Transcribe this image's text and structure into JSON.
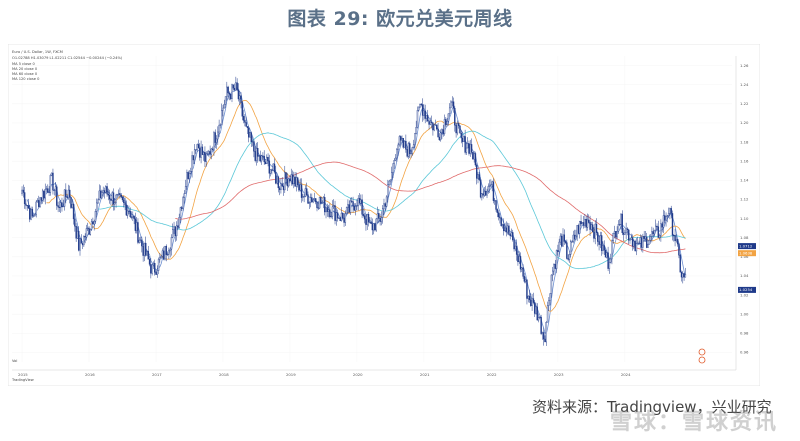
{
  "figure": {
    "title": "图表 29: 欧元兑美元周线",
    "source": "资料来源：Tradingview，兴业研究",
    "watermark": "雪球：雪球资讯"
  },
  "chart_header": {
    "symbol_line": "Euro / U.S. Dollar, 1W, FXCM",
    "ohlc_line": "O1.02788 H1.03079 L1.02211 C1.02544 −0.00244 (−0.24%)",
    "indicators": [
      "MA 5 close 0",
      "MA 20 close 0",
      "MA 60 close 0",
      "MA 120 close 0"
    ],
    "bottom_indicator": "Vol",
    "brand": "TradingView"
  },
  "colors": {
    "candle_up": "#ffffff",
    "candle_down": "#1f3a8a",
    "candle_edge": "#1f3a8a",
    "ma_5": "#6d8fd0",
    "ma_20": "#f2a343",
    "ma_60": "#5cc8d8",
    "ma_120": "#e06b6b",
    "badge_1": "#e05a2a",
    "badge_2": "#1f3a8a",
    "badge_3": "#f2a343"
  },
  "price_tags": [
    "1.0712",
    "1.0638",
    "1.0254"
  ],
  "chart_data": {
    "type": "candlestick",
    "title": "",
    "xlabel": "",
    "ylabel": "",
    "ylim": [
      0.95,
      1.27
    ],
    "x_ticks": [
      "2015",
      "2016",
      "2017",
      "2018",
      "2019",
      "2020",
      "2021",
      "2022",
      "2023",
      "2024"
    ],
    "y_ticks": [
      0.96,
      0.98,
      1.0,
      1.02,
      1.04,
      1.06,
      1.08,
      1.1,
      1.12,
      1.14,
      1.16,
      1.18,
      1.2,
      1.22,
      1.24,
      1.26
    ],
    "close_path": [
      [
        2015.0,
        1.13
      ],
      [
        2015.15,
        1.1
      ],
      [
        2015.25,
        1.12
      ],
      [
        2015.45,
        1.14
      ],
      [
        2015.55,
        1.11
      ],
      [
        2015.7,
        1.13
      ],
      [
        2015.85,
        1.07
      ],
      [
        2016.0,
        1.09
      ],
      [
        2016.2,
        1.13
      ],
      [
        2016.4,
        1.12
      ],
      [
        2016.6,
        1.11
      ],
      [
        2016.8,
        1.07
      ],
      [
        2016.95,
        1.045
      ],
      [
        2017.1,
        1.06
      ],
      [
        2017.3,
        1.09
      ],
      [
        2017.45,
        1.14
      ],
      [
        2017.6,
        1.18
      ],
      [
        2017.75,
        1.16
      ],
      [
        2017.9,
        1.19
      ],
      [
        2018.05,
        1.23
      ],
      [
        2018.2,
        1.235
      ],
      [
        2018.35,
        1.19
      ],
      [
        2018.5,
        1.165
      ],
      [
        2018.7,
        1.155
      ],
      [
        2018.85,
        1.135
      ],
      [
        2019.0,
        1.145
      ],
      [
        2019.2,
        1.125
      ],
      [
        2019.4,
        1.12
      ],
      [
        2019.6,
        1.11
      ],
      [
        2019.8,
        1.1
      ],
      [
        2020.0,
        1.12
      ],
      [
        2020.2,
        1.09
      ],
      [
        2020.35,
        1.1
      ],
      [
        2020.5,
        1.14
      ],
      [
        2020.6,
        1.18
      ],
      [
        2020.8,
        1.17
      ],
      [
        2020.95,
        1.22
      ],
      [
        2021.1,
        1.2
      ],
      [
        2021.25,
        1.19
      ],
      [
        2021.4,
        1.22
      ],
      [
        2021.55,
        1.18
      ],
      [
        2021.7,
        1.175
      ],
      [
        2021.85,
        1.13
      ],
      [
        2022.0,
        1.135
      ],
      [
        2022.15,
        1.1
      ],
      [
        2022.3,
        1.08
      ],
      [
        2022.45,
        1.05
      ],
      [
        2022.55,
        1.02
      ],
      [
        2022.7,
        1.0
      ],
      [
        2022.8,
        0.975
      ],
      [
        2022.9,
        1.04
      ],
      [
        2023.05,
        1.08
      ],
      [
        2023.15,
        1.06
      ],
      [
        2023.3,
        1.09
      ],
      [
        2023.45,
        1.1
      ],
      [
        2023.6,
        1.08
      ],
      [
        2023.75,
        1.055
      ],
      [
        2023.9,
        1.1
      ],
      [
        2024.05,
        1.085
      ],
      [
        2024.2,
        1.07
      ],
      [
        2024.35,
        1.08
      ],
      [
        2024.5,
        1.085
      ],
      [
        2024.65,
        1.11
      ],
      [
        2024.75,
        1.08
      ],
      [
        2024.85,
        1.04
      ],
      [
        2024.92,
        1.035
      ]
    ]
  }
}
